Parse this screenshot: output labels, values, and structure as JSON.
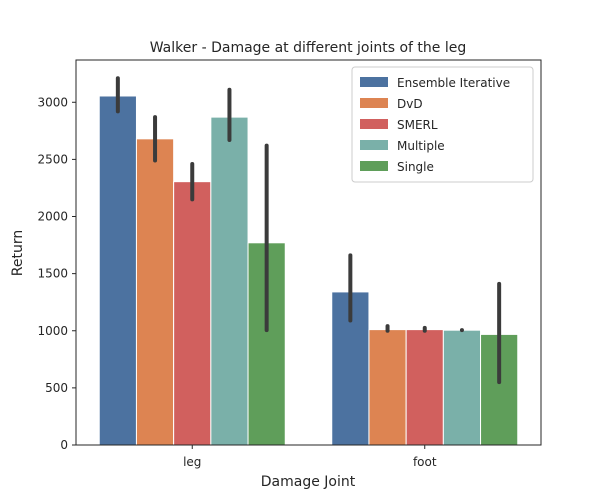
{
  "chart_data": {
    "type": "bar",
    "title": "Walker - Damage at different joints of the leg",
    "xlabel": "Damage Joint",
    "ylabel": "Return",
    "categories": [
      "leg",
      "foot"
    ],
    "ylim": [
      0,
      3370
    ],
    "yticks": [
      0,
      500,
      1000,
      1500,
      2000,
      2500,
      3000
    ],
    "grid": false,
    "legend_position": "top-right",
    "series": [
      {
        "name": "Ensemble Iterative",
        "color": "#4c72a0",
        "values": [
          3055,
          1340
        ],
        "ci_low": [
          2920,
          1090
        ],
        "ci_high": [
          3210,
          1660
        ]
      },
      {
        "name": "DvD",
        "color": "#dd8452",
        "values": [
          2680,
          1010
        ],
        "ci_low": [
          2490,
          1000
        ],
        "ci_high": [
          2870,
          1040
        ]
      },
      {
        "name": "SMERL",
        "color": "#d1605e",
        "values": [
          2305,
          1010
        ],
        "ci_low": [
          2150,
          1000
        ],
        "ci_high": [
          2460,
          1025
        ]
      },
      {
        "name": "Multiple",
        "color": "#7ab0a9",
        "values": [
          2870,
          1005
        ],
        "ci_low": [
          2670,
          1005
        ],
        "ci_high": [
          3110,
          1005
        ]
      },
      {
        "name": "Single",
        "color": "#5f9e5a",
        "values": [
          1770,
          968
        ],
        "ci_low": [
          1005,
          550
        ],
        "ci_high": [
          2620,
          1410
        ]
      }
    ]
  }
}
